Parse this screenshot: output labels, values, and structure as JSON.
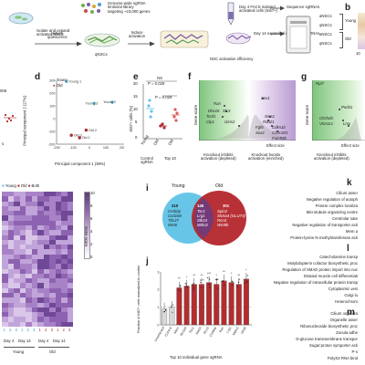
{
  "panels": {
    "a": {
      "isolate_text": "Isolate and expand\nactivated NSCs",
      "induce_quiescence": "Induce\nquiescence",
      "qnscs": "qNSCs",
      "library_text": "Genome-wide sgRNA\nlentiviral library\ntargeting ~23,000 genes",
      "induce_activation": "Induce\nactivation",
      "facs_text": "Day 4 FACS isolated\nactivated cells (Ki67+)",
      "expanded_text": "Day 14 expanded cells",
      "sequence1": "Sequence sgRNAs",
      "sequence2": "Sequence sgRNAs",
      "efficiency": "NSC activation efficiency"
    },
    "b": {
      "label": "b",
      "rows": [
        "aNSCs",
        "qNSCs",
        "aNSCs",
        "qNSCs"
      ],
      "groups": [
        "Young",
        "Old"
      ],
      "axis": "10"
    },
    "c": {
      "ytick": "005",
      "caption": "s"
    },
    "d": {
      "label": "d",
      "legend": [
        "Young",
        "Old"
      ],
      "xlabel": "Principal component 1 (38%)",
      "ylabel": "Principal component 2 (27%)",
      "xticks": [
        "-200",
        "-100",
        "0",
        "100",
        "200"
      ],
      "yticks": [
        "300",
        "200",
        "100",
        "0",
        "-100",
        "-200"
      ],
      "point_labels": [
        "Young 1",
        "Young 3",
        "Young 2",
        "Old 2",
        "Old 3",
        "Old 1"
      ]
    },
    "e": {
      "label": "e",
      "ylabel": "Ki67+ cells (%)",
      "ns": "NS",
      "p1": "P = 0.029",
      "p2": "P = 0.029",
      "yticks": [
        "20",
        "15",
        "10",
        "5",
        "0"
      ],
      "xcats": [
        "Young",
        "Old",
        "Old"
      ],
      "xgroups": [
        "Control\nsgRNA",
        "Top 10"
      ]
    },
    "f": {
      "label": "f",
      "genes": [
        "Ran",
        "Slc3",
        "Dhx16",
        "Tcof1",
        "Clp1",
        "Gins2",
        "Snx1",
        "Sms1",
        "Rad21",
        "Fgf6",
        "Sox2",
        "Cdkn1b",
        "Ccdc183",
        "Fam93b"
      ],
      "ylabel": "Gene score",
      "xlabel": "Effect size",
      "left_note": "Knockout inhibits\nactivation (depleted)",
      "right_note": "Knockout boosts\nactivation (enriched)",
      "xticks": [
        "-10",
        "-5",
        "0",
        "5",
        "10"
      ]
    },
    "g": {
      "label": "g",
      "genes": [
        "Rpl7",
        "Pnd31",
        "Chchd3",
        "Vmn1r1",
        "Lmx"
      ],
      "ylabel": "Gene score",
      "xlabel": "Effect size",
      "left_note": "Knockout inhibits\nactivation (depleted)",
      "xticks": [
        "-10",
        "-5",
        "0"
      ]
    },
    "h": {
      "legend": [
        "Young",
        "Old",
        "Both"
      ],
      "colorbar_label": "Gene score",
      "colorbar_ticks": [
        "10",
        "8",
        "6",
        "4",
        "2",
        "0"
      ],
      "replicates": [
        "1",
        "2",
        "3",
        "1",
        "2",
        "3",
        "1",
        "2",
        "3",
        "1",
        "2",
        "3"
      ],
      "conditions": [
        "Day 4",
        "Day 14",
        "Day 4",
        "Day 14"
      ],
      "groups": [
        "Young",
        "Old"
      ]
    },
    "i": {
      "label": "i",
      "young": "Young",
      "old": "Old",
      "left_count": "210",
      "left_genes": [
        "Crebbp",
        "Ccd168",
        "Tbc27",
        "Wnt6"
      ],
      "mid_count": "145",
      "mid_genes": [
        "Tsc1",
        "Lrg1",
        "Stk24",
        "Mdm2"
      ],
      "right_count": "301",
      "right_genes": [
        "Spin2",
        "Slc5a4 (GLUT4)",
        "Rcn3",
        "Wnt9b"
      ]
    },
    "j": {
      "label": "j",
      "ylabel": "Fraction of Ki67+ cells normalized to control",
      "xlabel": "Top 10 individual gene sgRNA",
      "yticks": [
        "3",
        "2",
        "1",
        "0"
      ],
      "categories": [
        "Unselected",
        "Control",
        "Mem",
        "Slc2a4",
        "Tsc1",
        "Stk24",
        "Rcn3",
        "Crebbp",
        "Ran",
        "Lrg1",
        "Mdm2",
        "Wnt6"
      ],
      "sig": [
        "**",
        "*",
        "**",
        "**",
        "***",
        "*",
        "**",
        "*",
        "**",
        "*"
      ]
    },
    "k": {
      "label": "k",
      "items": [
        "Cilium asser",
        "Negative regulation of autoph",
        "Protein complex localiza",
        "Microtubule organizing centre",
        "Centriolar sate",
        "Negative regulation of transporter acti",
        "Mem a",
        "Protein-lysine N-methyltransferase acti"
      ]
    },
    "l": {
      "label": "l",
      "items": [
        "Catecholamine transp",
        "Molybdopterin cofactor biosynthetic proc",
        "Regulation of SMAD protein import into nuc",
        "Striated muscle cell differentiati",
        "Negative regulation of intracellular protein transp",
        "Cytoplasmic vesi",
        "Golgi lu",
        "Heterochrom"
      ]
    },
    "m": {
      "label": "m",
      "items": [
        "Cilium organiza",
        "Organelle asser",
        "Ribonucleoside biosynthetic proc",
        "Zonula adhe",
        "D-glucose transmembrane transpor",
        "Sugar:proton symporter acti",
        "P-s",
        "PolyS3 RNA bind"
      ]
    }
  },
  "chart_data": [
    {
      "type": "bar",
      "title": "",
      "categories": [
        "Unselected",
        "Control",
        "Mem",
        "Slc2a4",
        "Tsc1",
        "Stk24",
        "Rcn3",
        "Crebbp",
        "Ran",
        "Lrg1",
        "Mdm2",
        "Wnt6"
      ],
      "values": [
        0.9,
        1.0,
        2.1,
        2.2,
        2.3,
        2.3,
        2.4,
        2.3,
        2.5,
        2.4,
        2.3,
        2.6
      ],
      "ylabel": "Fraction of Ki67+ cells normalized to control",
      "xlabel": "Top 10 individual gene sgRNA",
      "ylim": [
        0,
        3
      ]
    },
    {
      "type": "scatter",
      "title": "",
      "series": [
        {
          "name": "Young",
          "points": [
            {
              "label": "Young 1",
              "x": -140,
              "y": 290
            },
            {
              "label": "Young 3",
              "x": 30,
              "y": 120
            },
            {
              "label": "Young 2",
              "x": 140,
              "y": 130
            }
          ]
        },
        {
          "name": "Old",
          "points": [
            {
              "label": "Old 2",
              "x": -20,
              "y": -90
            },
            {
              "label": "Old 3",
              "x": -110,
              "y": -130
            },
            {
              "label": "Old 1",
              "x": -60,
              "y": -150
            }
          ]
        }
      ],
      "xlabel": "Principal component 1 (38%)",
      "ylabel": "Principal component 2 (27%)",
      "xlim": [
        -200,
        200
      ],
      "ylim": [
        -200,
        300
      ]
    }
  ],
  "colors": {
    "young": "#62c4e8",
    "old": "#b02a30",
    "both": "#a64560",
    "purple": "#9b72b5",
    "green": "#bfe3b4",
    "red_bar": "#b22d30"
  }
}
